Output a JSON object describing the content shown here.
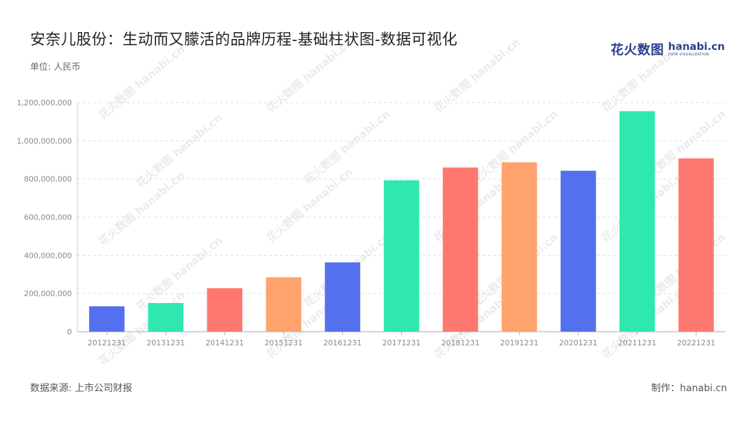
{
  "header": {
    "title": "安奈儿股份：生动而又朦活的品牌历程-基础柱状图-数据可视化",
    "unit": "单位: 人民币"
  },
  "logo": {
    "cn": "花火数图",
    "en": "hanabi.cn",
    "sub": "DATA VISUALIZATION"
  },
  "footer": {
    "source": "数据来源: 上市公司财报",
    "credit": "制作：hanabi.cn"
  },
  "watermark": "花火数图 hanabi.cn",
  "chart_data": {
    "type": "bar",
    "title": "安奈儿股份：生动而又朦活的品牌历程-基础柱状图-数据可视化",
    "xlabel": "",
    "ylabel": "",
    "categories": [
      "20121231",
      "20131231",
      "20141231",
      "20151231",
      "20161231",
      "20171231",
      "20181231",
      "20191231",
      "20201231",
      "20211231",
      "20221231"
    ],
    "values": [
      133000000,
      150000000,
      228000000,
      285000000,
      363000000,
      793000000,
      860000000,
      887000000,
      843000000,
      1155000000,
      908000000
    ],
    "colors": [
      "#5470ee",
      "#2ee8b0",
      "#ff7870",
      "#ffa26e",
      "#5470ee",
      "#2ee8b0",
      "#ff7870",
      "#ffa26e",
      "#5470ee",
      "#2ee8b0",
      "#ff7870"
    ],
    "ylim": [
      0,
      1200000000
    ],
    "yticks": [
      0,
      200000000,
      400000000,
      600000000,
      800000000,
      1000000000,
      1200000000
    ],
    "ytick_labels": [
      "0",
      "200,000,000",
      "400,000,000",
      "600,000,000",
      "800,000,000",
      "1,000,000,000",
      "1,200,000,000"
    ],
    "grid": true,
    "legend": "none"
  }
}
